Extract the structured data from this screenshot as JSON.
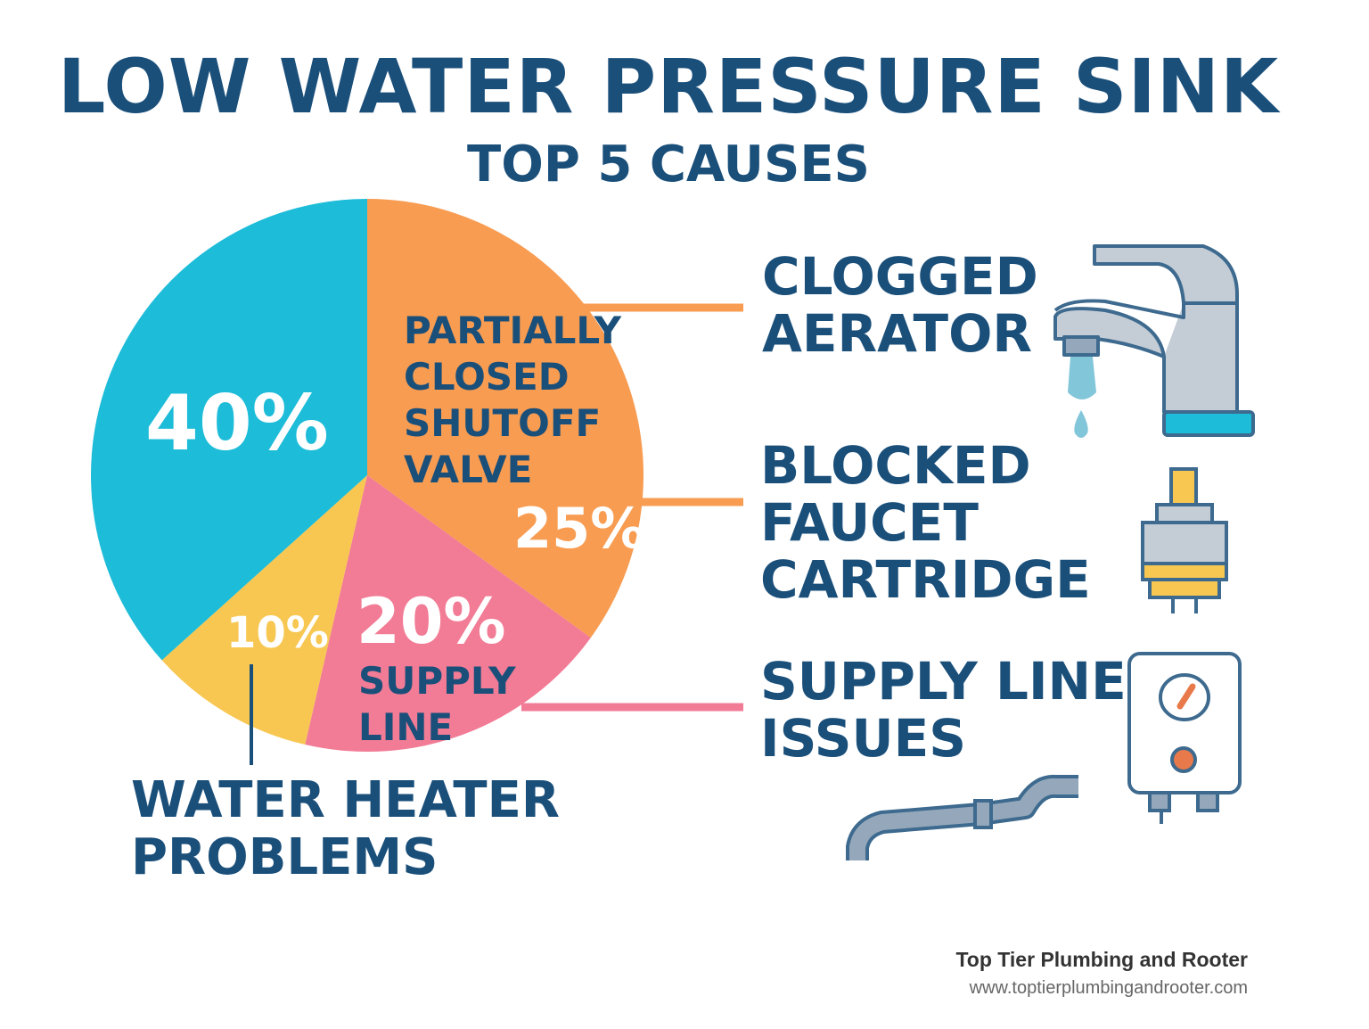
{
  "header": {
    "title": "LOW WATER PRESSURE SINK",
    "subtitle": "TOP 5 CAUSES"
  },
  "chart_data": {
    "type": "pie",
    "title": "LOW WATER PRESSURE SINK",
    "subtitle": "TOP 5 CAUSES",
    "slices": [
      {
        "label": "PARTIALLY CLOSED SHUTOFF VALVE",
        "value": 25,
        "value_label": "25%",
        "color": "#f89c52"
      },
      {
        "label": "SUPPLY LINE",
        "value": 20,
        "value_label": "20%",
        "color": "#f27b95"
      },
      {
        "label": "WATER HEATER PROBLEMS",
        "value": 10,
        "value_label": "10%",
        "color": "#f7c752"
      },
      {
        "label": "",
        "value": 40,
        "value_label": "40%",
        "color": "#1dbcd9"
      }
    ],
    "callouts": [
      "CLOGGED AERATOR",
      "BLOCKED FAUCET CARTRIDGE",
      "SUPPLY LINE ISSUES"
    ]
  },
  "labels": {
    "valve": [
      "PARTIALLY",
      "CLOSED",
      "SHUTOFF",
      "VALVE"
    ],
    "supply": [
      "SUPPLY",
      "LINE"
    ],
    "heater": [
      "WATER HEATER",
      "PROBLEMS"
    ],
    "aerator": [
      "CLOGGED",
      "AERATOR"
    ],
    "cartridge": [
      "BLOCKED",
      "FAUCET",
      "CARTRIDGE"
    ],
    "supply_issues": [
      "SUPPLY LINE",
      "ISSUES"
    ]
  },
  "icons": [
    "faucet-icon",
    "cartridge-icon",
    "water-heater-icon",
    "pipe-icon"
  ],
  "footer": {
    "company": "Top Tier Plumbing and Rooter",
    "url": "www.toptierplumbingandrooter.com"
  },
  "colors": {
    "text": "#1a4f7a",
    "blue": "#1dbcd9",
    "orange": "#f89c52",
    "pink": "#f27b95",
    "yellow": "#f7c752"
  }
}
